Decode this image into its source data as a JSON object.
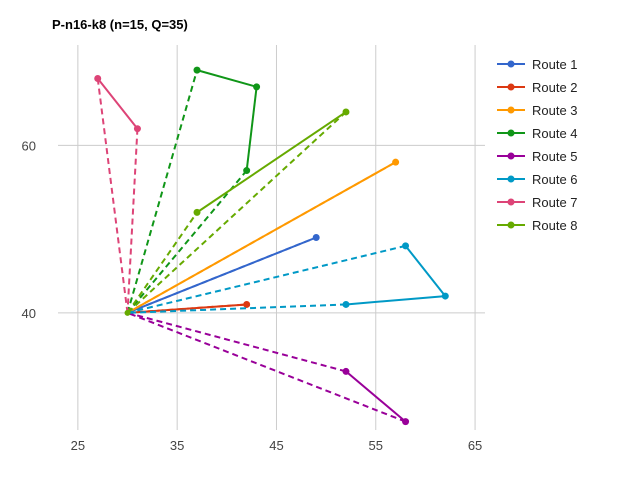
{
  "chart_data": {
    "type": "line",
    "title": "P-n16-k8 (n=15, Q=35)",
    "xlabel": "",
    "ylabel": "",
    "xlim": [
      23,
      66
    ],
    "ylim": [
      26,
      72
    ],
    "x_ticks": [
      25,
      35,
      45,
      55,
      65
    ],
    "y_ticks": [
      40,
      60
    ],
    "grid": true,
    "legend_position": "right",
    "depot": {
      "x": 30,
      "y": 40
    },
    "series": [
      {
        "name": "Route 1",
        "color": "#3366cc",
        "points": [
          [
            49,
            49
          ]
        ]
      },
      {
        "name": "Route 2",
        "color": "#dc3912",
        "points": [
          [
            42,
            41
          ]
        ]
      },
      {
        "name": "Route 3",
        "color": "#ff9900",
        "points": [
          [
            57,
            58
          ]
        ]
      },
      {
        "name": "Route 4",
        "color": "#109618",
        "points": [
          [
            37,
            69
          ],
          [
            43,
            67
          ],
          [
            42,
            57
          ]
        ]
      },
      {
        "name": "Route 5",
        "color": "#990099",
        "points": [
          [
            52,
            33
          ],
          [
            58,
            27
          ]
        ]
      },
      {
        "name": "Route 6",
        "color": "#0099c6",
        "points": [
          [
            58,
            48
          ],
          [
            62,
            42
          ],
          [
            52,
            41
          ]
        ]
      },
      {
        "name": "Route 7",
        "color": "#dd4477",
        "points": [
          [
            27,
            68
          ],
          [
            31,
            62
          ]
        ]
      },
      {
        "name": "Route 8",
        "color": "#66aa00",
        "points": [
          [
            37,
            52
          ],
          [
            52,
            64
          ]
        ]
      }
    ]
  }
}
